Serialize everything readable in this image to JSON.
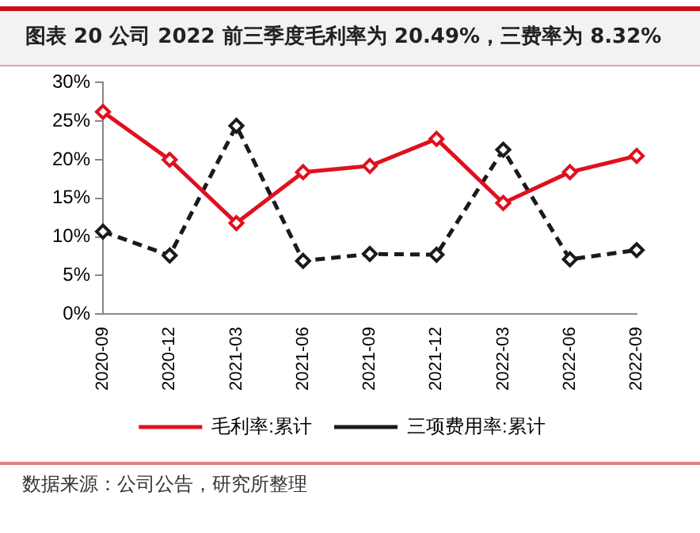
{
  "chart_data": {
    "type": "line",
    "title": "图表 20 公司 2022 前三季度毛利率为 20.49%，三费率为 8.32%",
    "categories": [
      "2020-09",
      "2020-12",
      "2021-03",
      "2021-06",
      "2021-09",
      "2021-12",
      "2022-03",
      "2022-06",
      "2022-09"
    ],
    "series": [
      {
        "name": "毛利率:累计",
        "color": "#e0101e",
        "line_style": "solid",
        "values": [
          26.2,
          20.0,
          11.8,
          18.4,
          19.2,
          22.7,
          14.4,
          18.4,
          20.5
        ]
      },
      {
        "name": "三项费用率:累计",
        "color": "#1a1a1a",
        "line_style": "dashed",
        "values": [
          10.7,
          7.6,
          24.4,
          6.9,
          7.8,
          7.7,
          21.3,
          7.1,
          8.3
        ]
      }
    ],
    "ylim": [
      0,
      30
    ],
    "yticks": [
      {
        "value": 0,
        "label": "0%"
      },
      {
        "value": 5,
        "label": "5%"
      },
      {
        "value": 10,
        "label": "10%"
      },
      {
        "value": 15,
        "label": "15%"
      },
      {
        "value": 20,
        "label": "20%"
      },
      {
        "value": 25,
        "label": "25%"
      },
      {
        "value": 30,
        "label": "30%"
      }
    ],
    "grid": false,
    "legend": "bottom",
    "marker": "diamond",
    "annotations": [
      "数据来源：公司公告，研究所整理"
    ]
  }
}
